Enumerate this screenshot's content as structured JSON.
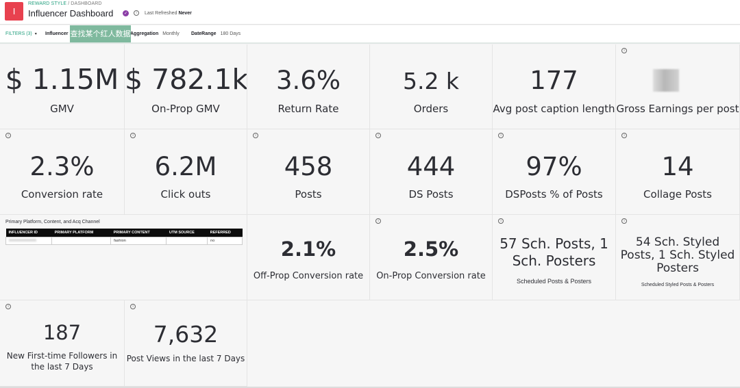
{
  "header": {
    "logo_letter": "I",
    "breadcrumb_link": "REWARD STYLE",
    "breadcrumb_rest": " / DASHBOARD",
    "title": "Influencer Dashboard",
    "verified_icon": "check-badge-icon",
    "info_icon": "info-icon",
    "last_refreshed_label": "Last Refreshed",
    "last_refreshed_value": "Never"
  },
  "filters": {
    "toggle_label": "FILTERS (3)",
    "caret": "▾",
    "items": [
      {
        "label": "Influencer",
        "value": ""
      },
      {
        "label": "Aggregation",
        "value": "Monthly"
      },
      {
        "label": "DateRange",
        "value": "180 Days"
      }
    ],
    "overlay_text": "查找某个红人数据"
  },
  "tiles": [
    {
      "value": "$ 1.15M",
      "label": "GMV"
    },
    {
      "value": "$ 782.1k",
      "label": "On-Prop GMV"
    },
    {
      "value": "3.6%",
      "label": "Return Rate"
    },
    {
      "value": "5.2 k",
      "label": "Orders"
    },
    {
      "value": "177",
      "label": "Avg post caption length"
    },
    {
      "value": "",
      "label": "Gross Earnings per post"
    },
    {
      "value": "2.3%",
      "label": "Conversion rate"
    },
    {
      "value": "6.2M",
      "label": "Click outs"
    },
    {
      "value": "458",
      "label": "Posts"
    },
    {
      "value": "444",
      "label": "DS Posts"
    },
    {
      "value": "97%",
      "label": "DSPosts % of Posts"
    },
    {
      "value": "14",
      "label": "Collage Posts"
    },
    {
      "value": "2.1%",
      "label": "Off-Prop Conversion rate"
    },
    {
      "value": "2.5%",
      "label": "On-Prop Conversion rate"
    },
    {
      "value": "57 Sch. Posts, 1 Sch. Posters",
      "label": "Scheduled Posts & Posters"
    },
    {
      "value": "54 Sch. Styled Posts, 1 Sch. Styled Posters",
      "label": "Scheduled Styled Posts & Posters"
    },
    {
      "value": "187",
      "label": "New First-time Followers in the last 7 Days"
    },
    {
      "value": "7,632",
      "label": "Post Views in the last 7 Days"
    }
  ],
  "table": {
    "title": "Primary Platform, Content, and Acq Channel",
    "columns": [
      "INFLUENCER ID",
      "PRIMARY PLATFORM",
      "PRIMARY CONTENT",
      "UTM SOURCE",
      "REFERRED"
    ],
    "rows": [
      [
        "",
        "",
        "fashion",
        "",
        "no"
      ]
    ]
  }
}
